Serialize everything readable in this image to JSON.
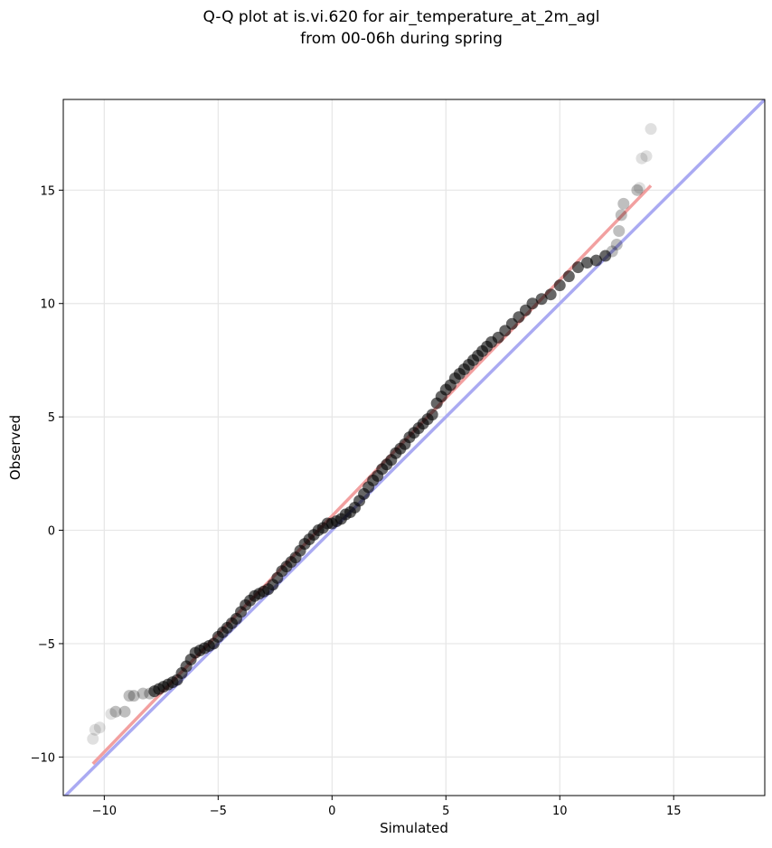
{
  "chart_data": {
    "type": "scatter",
    "title_line1": "Q-Q plot at is.vi.620 for air_temperature_at_2m_agl",
    "title_line2": "from 00-06h during spring",
    "xlabel": "Simulated",
    "ylabel": "Observed",
    "xlim": [
      -11.8,
      19.0
    ],
    "ylim": [
      -11.7,
      19.0
    ],
    "xticks": [
      -10,
      -5,
      0,
      5,
      10,
      15
    ],
    "yticks": [
      -10,
      -5,
      0,
      5,
      10,
      15
    ],
    "xtick_labels": [
      "−10",
      "−5",
      "0",
      "5",
      "10",
      "15"
    ],
    "ytick_labels": [
      "−10",
      "−5",
      "0",
      "5",
      "10",
      "15"
    ],
    "grid": true,
    "reference_line": {
      "color": "#aaaaf2",
      "from": [
        -11.8,
        -11.8
      ],
      "to": [
        19.0,
        19.0
      ]
    },
    "fit_line": {
      "color": "#f2a0a0",
      "from": [
        -10.5,
        -10.3
      ],
      "to": [
        14.0,
        15.2
      ]
    },
    "series": [
      {
        "color": "#000000",
        "points": [
          [
            -10.5,
            -9.2
          ],
          [
            -10.4,
            -8.8
          ],
          [
            -10.2,
            -8.7
          ],
          [
            -9.7,
            -8.1
          ],
          [
            -9.5,
            -8.0
          ],
          [
            -9.1,
            -8.0
          ],
          [
            -8.9,
            -7.3
          ],
          [
            -8.7,
            -7.3
          ],
          [
            -8.3,
            -7.2
          ],
          [
            -8.0,
            -7.2
          ],
          [
            -7.8,
            -7.1
          ],
          [
            -7.6,
            -7.0
          ],
          [
            -7.4,
            -6.9
          ],
          [
            -7.2,
            -6.8
          ],
          [
            -7.0,
            -6.7
          ],
          [
            -6.8,
            -6.6
          ],
          [
            -6.6,
            -6.3
          ],
          [
            -6.4,
            -6.0
          ],
          [
            -6.2,
            -5.7
          ],
          [
            -6.0,
            -5.4
          ],
          [
            -5.8,
            -5.3
          ],
          [
            -5.6,
            -5.2
          ],
          [
            -5.4,
            -5.1
          ],
          [
            -5.2,
            -5.0
          ],
          [
            -5.0,
            -4.7
          ],
          [
            -4.8,
            -4.5
          ],
          [
            -4.6,
            -4.3
          ],
          [
            -4.4,
            -4.1
          ],
          [
            -4.2,
            -3.9
          ],
          [
            -4.0,
            -3.6
          ],
          [
            -3.8,
            -3.3
          ],
          [
            -3.6,
            -3.1
          ],
          [
            -3.4,
            -2.9
          ],
          [
            -3.2,
            -2.8
          ],
          [
            -3.0,
            -2.7
          ],
          [
            -2.8,
            -2.6
          ],
          [
            -2.6,
            -2.4
          ],
          [
            -2.4,
            -2.1
          ],
          [
            -2.2,
            -1.8
          ],
          [
            -2.0,
            -1.6
          ],
          [
            -1.8,
            -1.4
          ],
          [
            -1.6,
            -1.2
          ],
          [
            -1.4,
            -0.9
          ],
          [
            -1.2,
            -0.6
          ],
          [
            -1.0,
            -0.4
          ],
          [
            -0.8,
            -0.2
          ],
          [
            -0.6,
            0.0
          ],
          [
            -0.4,
            0.1
          ],
          [
            -0.2,
            0.3
          ],
          [
            0.0,
            0.3
          ],
          [
            0.2,
            0.4
          ],
          [
            0.4,
            0.5
          ],
          [
            0.6,
            0.7
          ],
          [
            0.8,
            0.8
          ],
          [
            1.0,
            1.0
          ],
          [
            1.2,
            1.3
          ],
          [
            1.4,
            1.6
          ],
          [
            1.6,
            1.9
          ],
          [
            1.8,
            2.2
          ],
          [
            2.0,
            2.4
          ],
          [
            2.2,
            2.7
          ],
          [
            2.4,
            2.9
          ],
          [
            2.6,
            3.1
          ],
          [
            2.8,
            3.4
          ],
          [
            3.0,
            3.6
          ],
          [
            3.2,
            3.8
          ],
          [
            3.4,
            4.1
          ],
          [
            3.6,
            4.3
          ],
          [
            3.8,
            4.5
          ],
          [
            4.0,
            4.7
          ],
          [
            4.2,
            4.9
          ],
          [
            4.4,
            5.1
          ],
          [
            4.6,
            5.6
          ],
          [
            4.8,
            5.9
          ],
          [
            5.0,
            6.2
          ],
          [
            5.2,
            6.4
          ],
          [
            5.4,
            6.7
          ],
          [
            5.6,
            6.9
          ],
          [
            5.8,
            7.1
          ],
          [
            6.0,
            7.3
          ],
          [
            6.2,
            7.5
          ],
          [
            6.4,
            7.7
          ],
          [
            6.6,
            7.9
          ],
          [
            6.8,
            8.1
          ],
          [
            7.0,
            8.3
          ],
          [
            7.3,
            8.5
          ],
          [
            7.6,
            8.8
          ],
          [
            7.9,
            9.1
          ],
          [
            8.2,
            9.4
          ],
          [
            8.5,
            9.7
          ],
          [
            8.8,
            10.0
          ],
          [
            9.2,
            10.2
          ],
          [
            9.6,
            10.4
          ],
          [
            10.0,
            10.8
          ],
          [
            10.4,
            11.2
          ],
          [
            10.8,
            11.6
          ],
          [
            11.2,
            11.8
          ],
          [
            11.6,
            11.9
          ],
          [
            12.0,
            12.1
          ],
          [
            12.3,
            12.3
          ],
          [
            12.5,
            12.6
          ],
          [
            12.6,
            13.2
          ],
          [
            12.7,
            13.9
          ],
          [
            12.8,
            14.4
          ],
          [
            13.4,
            15.0
          ],
          [
            13.5,
            15.1
          ],
          [
            13.6,
            16.4
          ],
          [
            13.8,
            16.5
          ],
          [
            14.0,
            17.7
          ]
        ]
      }
    ]
  }
}
